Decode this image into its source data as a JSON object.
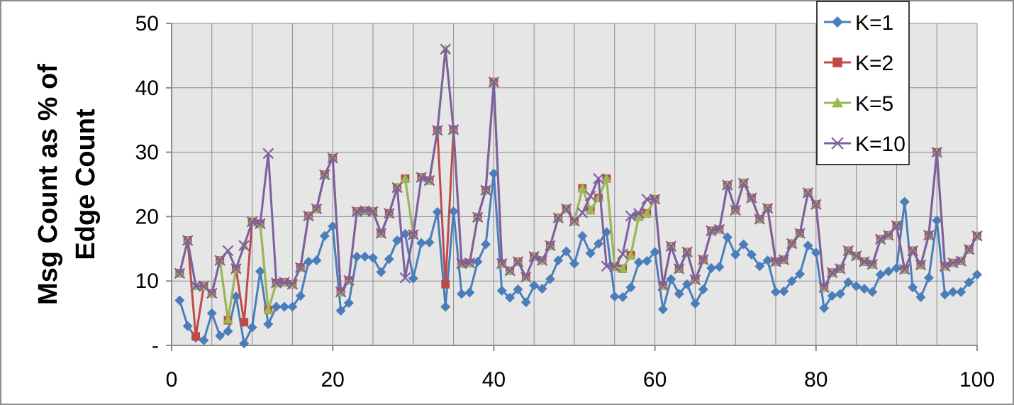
{
  "chart_data": {
    "type": "line",
    "title": "",
    "xlabel": "",
    "ylabel_lines": [
      "Msg Count as % of",
      "Edge Count"
    ],
    "xlim": [
      0,
      100
    ],
    "ylim": [
      0,
      50
    ],
    "x_ticks": [
      {
        "value": 0,
        "label": "0"
      },
      {
        "value": 20,
        "label": "20"
      },
      {
        "value": 40,
        "label": "40"
      },
      {
        "value": 60,
        "label": "60"
      },
      {
        "value": 80,
        "label": "80"
      },
      {
        "value": 100,
        "label": "100"
      }
    ],
    "y_ticks": [
      {
        "value": 0,
        "label": "-"
      },
      {
        "value": 10,
        "label": "10"
      },
      {
        "value": 20,
        "label": "20"
      },
      {
        "value": 30,
        "label": "30"
      },
      {
        "value": 40,
        "label": "40"
      },
      {
        "value": 50,
        "label": "50"
      }
    ],
    "grid": true,
    "legend_position": "top-right",
    "plot_background": "#e6e6e6",
    "series": [
      {
        "name": "K=1",
        "color": "#4a7ebb",
        "marker": "diamond",
        "values": [
          7,
          3,
          1.2,
          0.8,
          5,
          1.5,
          2.2,
          7.6,
          0.3,
          2.8,
          11.5,
          3.3,
          6,
          6,
          6,
          7.7,
          13,
          13.2,
          17,
          18.5,
          5.4,
          6.6,
          13.8,
          13.8,
          13.6,
          11.4,
          13.4,
          16.3,
          17.3,
          10.4,
          15.9,
          16,
          20.7,
          6,
          20.8,
          8,
          8.2,
          13,
          15.7,
          26.7,
          8.5,
          7.4,
          8.7,
          6.7,
          9.3,
          8.8,
          10.3,
          13.2,
          14.6,
          12.7,
          17,
          14.3,
          15.8,
          17.6,
          7.6,
          7.5,
          9,
          12.9,
          13.1,
          14.5,
          5.6,
          10.3,
          8,
          9.5,
          6.5,
          8.7,
          12,
          12.2,
          16.8,
          14.1,
          15.7,
          14.1,
          12.3,
          13.2,
          8.3,
          8.4,
          10,
          11.1,
          15.5,
          14.4,
          5.8,
          7.7,
          8,
          9.8,
          9.2,
          8.8,
          8.3,
          11,
          11.5,
          12,
          22.3,
          9,
          7.5,
          10.5,
          19.4,
          7.9,
          8.3,
          8.3,
          9.8,
          11
        ]
      },
      {
        "name": "K=2",
        "color": "#be4b48",
        "marker": "square",
        "values": [
          11.2,
          16.3,
          1.4,
          9.2,
          8.1,
          13.2,
          3.9,
          11.9,
          3.6,
          19.2,
          18.9,
          5.5,
          9.7,
          9.8,
          9.5,
          12.1,
          20.1,
          21.2,
          26.5,
          29.1,
          8.3,
          10.1,
          20.8,
          20.9,
          20.8,
          17.4,
          20.5,
          24.5,
          25.9,
          17.2,
          26.1,
          25.6,
          33.4,
          9.5,
          33.5,
          12.7,
          12.8,
          19.9,
          24.1,
          40.9,
          12.7,
          11.6,
          13,
          10.6,
          13.8,
          13.2,
          15.5,
          19.8,
          21.2,
          19.3,
          24.4,
          21,
          22.9,
          25.9,
          12.2,
          11.9,
          14,
          20,
          20.5,
          22.7,
          9.3,
          15.4,
          11.9,
          14.5,
          10.2,
          13.3,
          17.8,
          18,
          24.9,
          21,
          25.2,
          22.9,
          19.6,
          21.3,
          13,
          13.3,
          15.8,
          17.4,
          23.7,
          21.9,
          9,
          11.3,
          11.9,
          14.7,
          13.9,
          13,
          12.6,
          16.5,
          17.1,
          18.6,
          11.8,
          14.7,
          12.5,
          17.1,
          30,
          12.3,
          12.8,
          13.1,
          14.9,
          17
        ]
      },
      {
        "name": "K=5",
        "color": "#98b954",
        "marker": "triangle",
        "values": [
          11.2,
          16.3,
          9.2,
          9.2,
          8.1,
          13.2,
          4,
          11.9,
          15.5,
          19.2,
          18.9,
          5.5,
          9.7,
          9.8,
          9.5,
          12.1,
          20.1,
          21.2,
          26.5,
          29.1,
          8.3,
          10.1,
          20.8,
          20.9,
          20.8,
          17.4,
          20.5,
          24.5,
          25.9,
          17.2,
          26.1,
          25.6,
          33.4,
          46,
          33.5,
          12.7,
          12.8,
          19.9,
          24.1,
          40.9,
          12.7,
          11.6,
          13,
          10.6,
          13.8,
          13.2,
          15.5,
          19.8,
          21.2,
          19.3,
          24.4,
          21,
          22.9,
          25.9,
          12.2,
          11.9,
          14,
          20,
          20.5,
          22.7,
          9.3,
          15.4,
          11.9,
          14.5,
          10.2,
          13.3,
          17.8,
          18,
          24.9,
          21,
          25.2,
          22.9,
          19.6,
          21.3,
          13,
          13.3,
          15.8,
          17.4,
          23.7,
          21.9,
          9,
          11.3,
          11.9,
          14.7,
          13.9,
          13,
          12.6,
          16.5,
          17.1,
          18.6,
          11.8,
          14.7,
          12.5,
          17.1,
          30,
          12.3,
          12.8,
          13.1,
          14.9,
          17
        ]
      },
      {
        "name": "K=10",
        "color": "#7d60a0",
        "marker": "x",
        "values": [
          11.2,
          16.3,
          9.2,
          9.2,
          8.1,
          13.2,
          14.7,
          11.9,
          15.5,
          19.2,
          18.9,
          29.8,
          9.7,
          9.8,
          9.5,
          12.1,
          20.1,
          21.2,
          26.5,
          29.1,
          8.3,
          10.1,
          20.8,
          20.9,
          20.8,
          17.4,
          20.5,
          24.5,
          10.5,
          17.2,
          26.1,
          25.6,
          33.4,
          46,
          33.5,
          12.7,
          12.8,
          19.9,
          24.1,
          40.9,
          12.7,
          11.6,
          13,
          10.6,
          13.8,
          13.2,
          15.5,
          19.8,
          21.2,
          19.3,
          20.6,
          23.2,
          25.9,
          12.3,
          12.2,
          14.2,
          20.1,
          20.5,
          22.7,
          22.7,
          9.3,
          15.4,
          11.9,
          14.5,
          10.2,
          13.3,
          17.8,
          18,
          24.9,
          21,
          25.2,
          22.9,
          19.6,
          21.3,
          13,
          13.3,
          15.8,
          17.4,
          23.7,
          21.9,
          9,
          11.3,
          11.9,
          14.7,
          13.9,
          13,
          12.6,
          16.5,
          17.1,
          18.6,
          11.8,
          14.7,
          12.5,
          17.1,
          30,
          12.3,
          12.8,
          13.1,
          14.9,
          17
        ]
      }
    ]
  }
}
